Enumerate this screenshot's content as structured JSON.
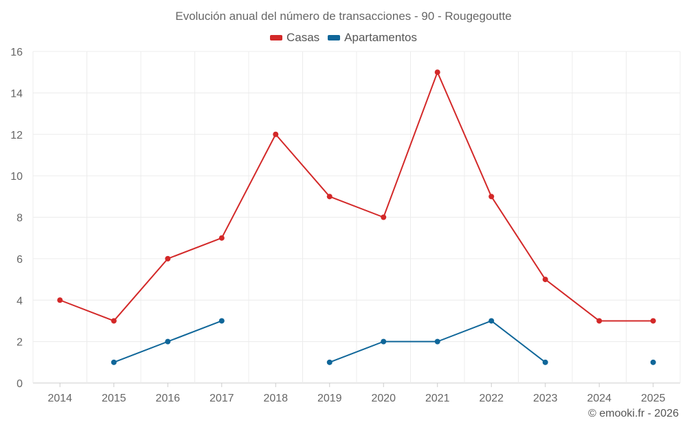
{
  "chart_data": {
    "type": "line",
    "title": "Evolución anual del número de transacciones - 90 - Rougegoutte",
    "categories": [
      "2014",
      "2015",
      "2016",
      "2017",
      "2018",
      "2019",
      "2020",
      "2021",
      "2022",
      "2023",
      "2024",
      "2025"
    ],
    "ylim": [
      0,
      16
    ],
    "yticks": [
      0,
      2,
      4,
      6,
      8,
      10,
      12,
      14,
      16
    ],
    "grid": true,
    "legend_position": "top-center",
    "series": [
      {
        "name": "Casas",
        "color": "#d32828",
        "values": [
          4,
          3,
          6,
          7,
          12,
          9,
          8,
          15,
          9,
          5,
          3,
          3
        ]
      },
      {
        "name": "Apartamentos",
        "color": "#0f6699",
        "values": [
          null,
          1,
          2,
          3,
          null,
          1,
          2,
          2,
          3,
          1,
          null,
          1
        ]
      }
    ]
  },
  "credit": "© emooki.fr - 2026"
}
